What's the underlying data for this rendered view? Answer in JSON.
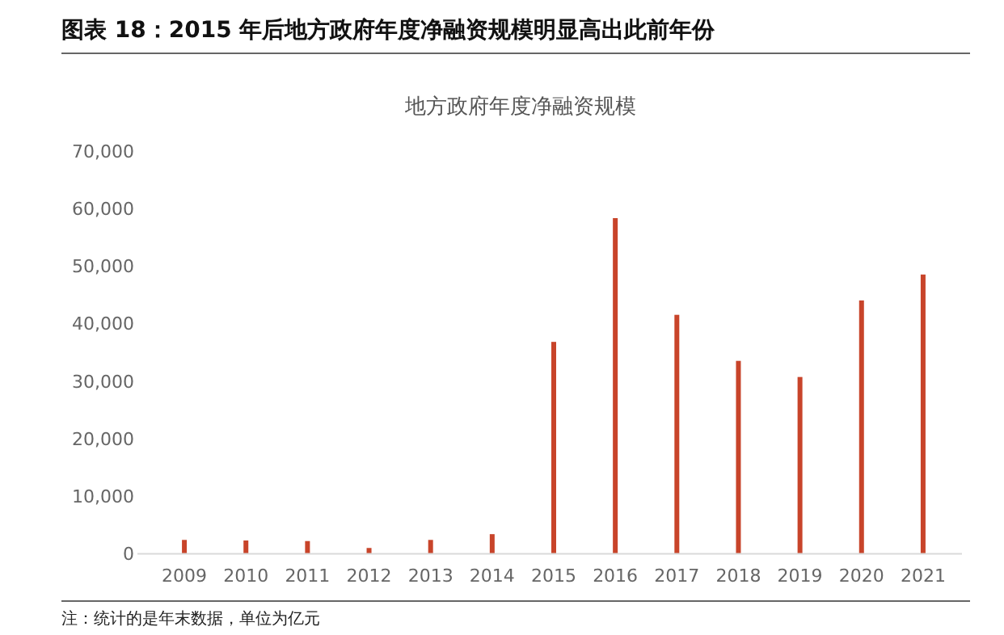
{
  "chart_data": {
    "type": "bar",
    "title": "图表 18：2015 年后地方政府年度净融资规模明显高出此前年份",
    "subtitle": "地方政府年度净融资规模",
    "annotations": [
      "注：统计的是年末数据，单位为亿元"
    ],
    "categories": [
      "2009",
      "2010",
      "2011",
      "2012",
      "2013",
      "2014",
      "2015",
      "2016",
      "2017",
      "2018",
      "2019",
      "2020",
      "2021"
    ],
    "values": [
      2400,
      2300,
      2200,
      1000,
      2400,
      3400,
      36800,
      58300,
      41500,
      33500,
      30700,
      44000,
      48500
    ],
    "color": "#c8442a",
    "ylim": [
      0,
      70000
    ],
    "yticks": [
      {
        "value": 0,
        "label": "0"
      },
      {
        "value": 10000,
        "label": "10,000"
      },
      {
        "value": 20000,
        "label": "20,000"
      },
      {
        "value": 30000,
        "label": "30,000"
      },
      {
        "value": 40000,
        "label": "40,000"
      },
      {
        "value": 50000,
        "label": "50,000"
      },
      {
        "value": 60000,
        "label": "60,000"
      },
      {
        "value": 70000,
        "label": "70,000"
      }
    ],
    "grid": false
  }
}
